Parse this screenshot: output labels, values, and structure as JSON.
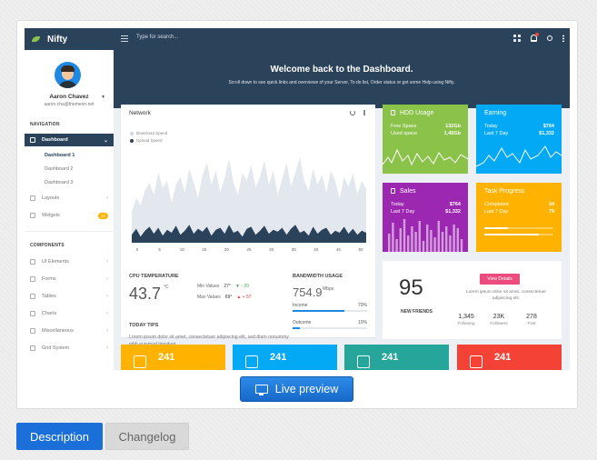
{
  "app": {
    "name": "Nifty",
    "search_placeholder": "Type for search..."
  },
  "topbar_icons": [
    "grid-icon",
    "bell-icon",
    "user-icon",
    "more-vertical-icon"
  ],
  "user": {
    "name": "Aaron Chavez",
    "email": "aaron.cha@themeon.net"
  },
  "sidebar": {
    "navigation_heading": "NAVIGATION",
    "dashboard": "Dashboard",
    "dashboard_children": [
      "Dashboard 1",
      "Dashboard 2",
      "Dashboard 3"
    ],
    "layouts": "Layouts",
    "widgets": "Widgets",
    "widgets_badge": "24",
    "components_heading": "COMPONENTS",
    "components": [
      "UI Elements",
      "Forms",
      "Tables",
      "Charts",
      "Miscellaneous",
      "Grid System"
    ]
  },
  "hero": {
    "title": "Welcome back to the Dashboard.",
    "subtitle": "Scroll down to see quick links and overviews of your Server, To do list, Order status or get some Help using Nifty."
  },
  "network": {
    "title": "Network",
    "legend_download": "Download Speed",
    "legend_upload": "Upload Speed",
    "colors": {
      "download": "#e3e8ee",
      "upload": "#2b425b"
    }
  },
  "chart_data": {
    "type": "area",
    "x": [
      0,
      1,
      2,
      3,
      4,
      5,
      6,
      7,
      8,
      9,
      10,
      11,
      12,
      13,
      14,
      15,
      16,
      17,
      18,
      19,
      20,
      21,
      22,
      23,
      24,
      25,
      26,
      27,
      28,
      29,
      30,
      31,
      32,
      33,
      34,
      35,
      36,
      37,
      38,
      39,
      40,
      41,
      42,
      43,
      44,
      45,
      46,
      47,
      48,
      49,
      50,
      51,
      52,
      53
    ],
    "x_tick_labels": [
      "0",
      "5",
      "10",
      "15",
      "20",
      "25",
      "30",
      "35",
      "40",
      "45",
      "50"
    ],
    "y_tick_labels": [],
    "ylim": [
      0,
      100
    ],
    "series": [
      {
        "name": "Download Speed",
        "values": [
          30,
          45,
          38,
          52,
          60,
          48,
          70,
          55,
          62,
          40,
          58,
          66,
          50,
          74,
          60,
          45,
          68,
          80,
          58,
          72,
          50,
          65,
          84,
          60,
          48,
          70,
          62,
          78,
          55,
          66,
          82,
          58,
          72,
          48,
          64,
          80,
          56,
          70,
          86,
          62,
          52,
          74,
          58,
          68,
          50,
          72,
          62,
          44,
          66,
          56,
          70,
          48,
          62,
          54
        ]
      },
      {
        "name": "Upload Speed",
        "values": [
          8,
          14,
          6,
          12,
          16,
          9,
          15,
          7,
          13,
          10,
          17,
          8,
          12,
          18,
          9,
          14,
          11,
          16,
          7,
          13,
          15,
          9,
          18,
          10,
          12,
          6,
          14,
          16,
          8,
          12,
          17,
          9,
          13,
          11,
          15,
          8,
          14,
          18,
          10,
          12,
          7,
          16,
          9,
          13,
          15,
          8,
          12,
          10,
          16,
          9,
          14,
          8,
          12,
          10
        ]
      }
    ]
  },
  "cpu": {
    "label": "CPU TEMPERATURE",
    "value": "43.7",
    "unit": "°C",
    "min_label": "Min Values",
    "min_value": "27°",
    "min_change": "▼ - 20",
    "max_label": "Max Values",
    "max_value": "69°",
    "max_change": "▲ + 57"
  },
  "bandwidth": {
    "label": "BANDWIDTH USAGE",
    "value": "754.9",
    "unit": "Mbps",
    "income_label": "Income",
    "income_pct": "70%",
    "income_fraction": 0.7,
    "outcome_label": "Outcome",
    "outcome_pct": "10%",
    "outcome_fraction": 0.1
  },
  "tips": {
    "label": "TODAY TIPS",
    "text": "Lorem ipsum dolor sit amet, consectetuer adipiscing elit, sed diam nonummy nibh euismod tincidunt."
  },
  "tiles": {
    "hdd": {
      "title": "HDD Usage",
      "row1_label": "Free Space",
      "row1_value": "132Gb",
      "row2_label": "Used space",
      "row2_value": "1,45Gb",
      "color": "#8bc34a"
    },
    "earning": {
      "title": "Earning",
      "row1_label": "Today",
      "row1_value": "$764",
      "row2_label": "Last 7 Day",
      "row2_value": "$1,332",
      "color": "#03a9f4"
    },
    "sales": {
      "title": "Sales",
      "row1_label": "Today",
      "row1_value": "$764",
      "row2_label": "Last 7 Day",
      "row2_value": "$1,332",
      "color": "#9c27b0"
    },
    "progress": {
      "title": "Task Progress",
      "row1_label": "Completed",
      "row1_value": "34",
      "row2_label": "Last 7 Day",
      "row2_value": "79",
      "color": "#ffb300",
      "completed_fraction": 0.34,
      "last7_fraction": 0.79
    }
  },
  "friends": {
    "count": "95",
    "label": "NEW FRIENDS",
    "button": "View Details",
    "text": "Lorem ipsum dolor sit amet, consectetuer adipiscing elit.",
    "stats": [
      {
        "value": "1,345",
        "label": "Following"
      },
      {
        "value": "23K",
        "label": "Followers"
      },
      {
        "value": "278",
        "label": "Post"
      }
    ]
  },
  "bottom_tiles": [
    {
      "value": "241",
      "color": "#ffb300",
      "icon": "document-icon"
    },
    {
      "value": "241",
      "color": "#03a9f4",
      "icon": "file-icon"
    },
    {
      "value": "241",
      "color": "#26a69a",
      "icon": "camera-icon"
    },
    {
      "value": "241",
      "color": "#f44336",
      "icon": "video-icon"
    }
  ],
  "buttons": {
    "live_preview": "Live preview",
    "description": "Description",
    "changelog": "Changelog"
  }
}
